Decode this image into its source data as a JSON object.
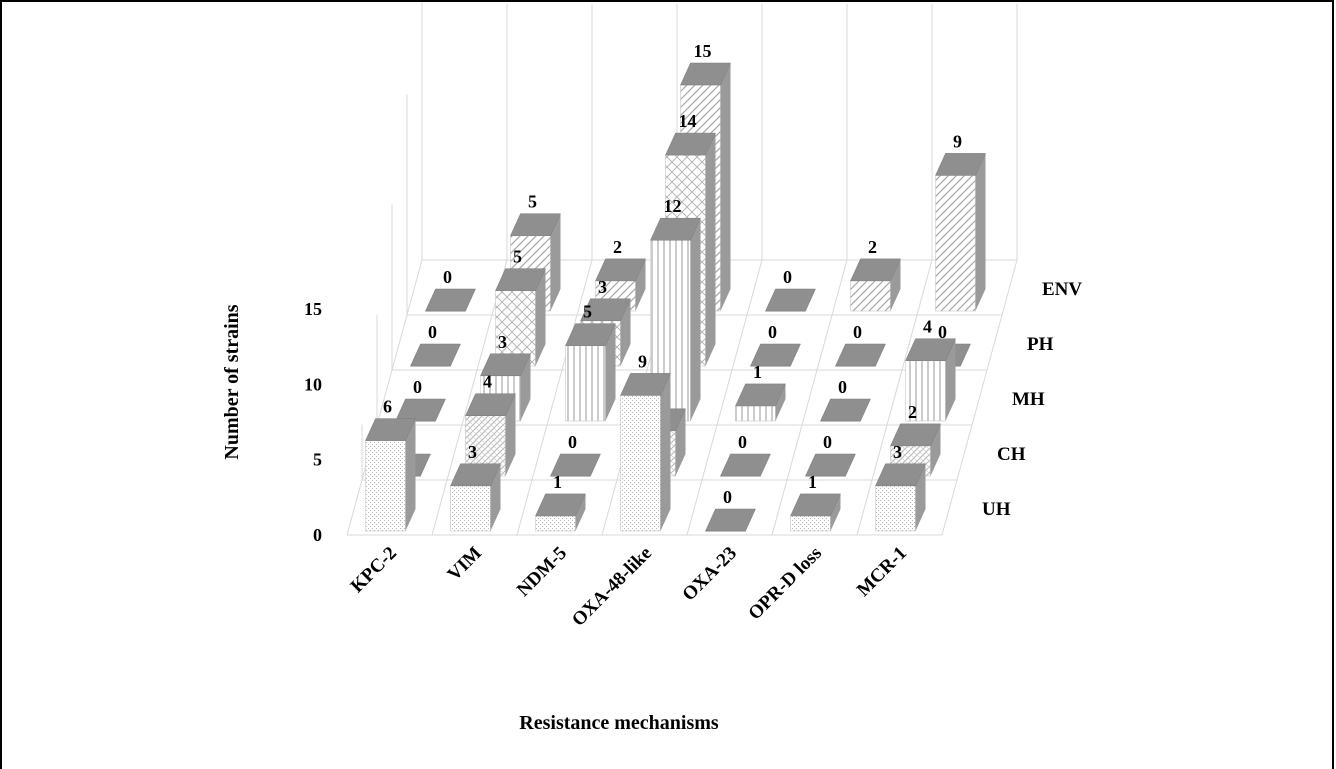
{
  "chart_data": {
    "type": "bar",
    "subtype": "3d-column",
    "categories": [
      "KPC-2",
      "VIM",
      "NDM-5",
      "OXA-48-like",
      "OXA-23",
      "OPR-D loss",
      "MCR-1"
    ],
    "series": [
      {
        "name": "UH",
        "values": [
          6,
          3,
          1,
          9,
          0,
          1,
          3
        ]
      },
      {
        "name": "CH",
        "values": [
          0,
          4,
          0,
          3,
          0,
          0,
          2
        ]
      },
      {
        "name": "MH",
        "values": [
          0,
          3,
          5,
          12,
          1,
          0,
          4
        ]
      },
      {
        "name": "PH",
        "values": [
          0,
          5,
          3,
          14,
          0,
          0,
          0
        ]
      },
      {
        "name": "ENV",
        "values": [
          0,
          5,
          2,
          15,
          0,
          2,
          9
        ]
      }
    ],
    "yticks": [
      0,
      5,
      10,
      15
    ],
    "ylim": [
      0,
      15
    ],
    "xlabel": "Resistance mechanisms",
    "ylabel": "Number of strains",
    "title": "",
    "legend": "depth-axis-labels-right",
    "grid": true
  }
}
